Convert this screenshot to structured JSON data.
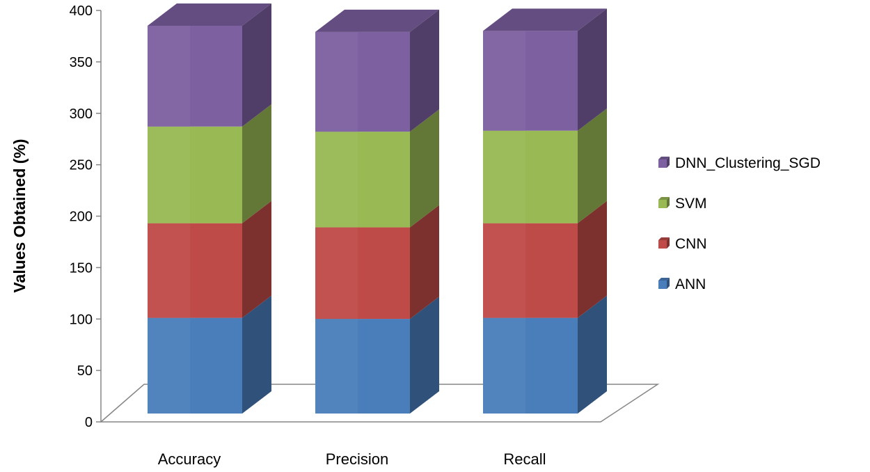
{
  "chart_data": {
    "type": "bar",
    "stacked": true,
    "three_d": true,
    "categories": [
      "Accuracy",
      "Precision",
      "Recall"
    ],
    "series": [
      {
        "name": "ANN",
        "values": [
          93,
          92,
          93
        ],
        "color": "#4A7EBB"
      },
      {
        "name": "CNN",
        "values": [
          92,
          89,
          92
        ],
        "color": "#BE4B48"
      },
      {
        "name": "SVM",
        "values": [
          94,
          93,
          90
        ],
        "color": "#98B954"
      },
      {
        "name": "DNN_Clustering_SGD",
        "values": [
          98,
          97,
          97
        ],
        "color": "#7D60A0"
      }
    ],
    "legend_order": [
      "DNN_Clustering_SGD",
      "SVM",
      "CNN",
      "ANN"
    ],
    "title": "",
    "xlabel": "",
    "ylabel": "Values Obtained  (%)",
    "ylim": [
      0,
      400
    ],
    "yticks": [
      0,
      50,
      100,
      150,
      200,
      250,
      300,
      350,
      400
    ],
    "ytick_labels": [
      "0",
      "50",
      "100",
      "150",
      "200",
      "250",
      "300",
      "350",
      "400"
    ],
    "grid": false,
    "legend_position": "right"
  }
}
